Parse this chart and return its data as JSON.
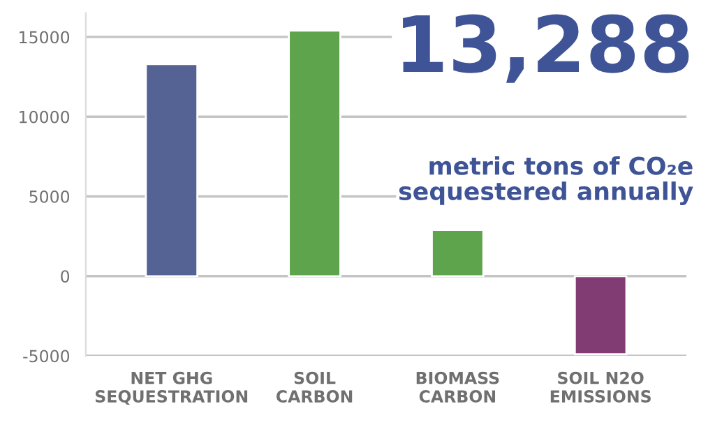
{
  "chart_data": {
    "type": "bar",
    "categories": [
      "NET GHG\nSEQUESTRATION",
      "SOIL\nCARBON",
      "BIOMASS\nCARBON",
      "SOIL N2O\nEMISSIONS"
    ],
    "values": [
      13300,
      15400,
      2900,
      -4900
    ],
    "colors": [
      "#4a5d9e",
      "#55b23f",
      "#55b23f",
      "#8c317a"
    ],
    "ylim": [
      -5000,
      16500
    ],
    "yticks": [
      -5000,
      0,
      5000,
      10000,
      15000
    ],
    "grid": "y",
    "annotations": [
      "13,288",
      "metric tons of CO₂e\nsequestered annually"
    ]
  }
}
